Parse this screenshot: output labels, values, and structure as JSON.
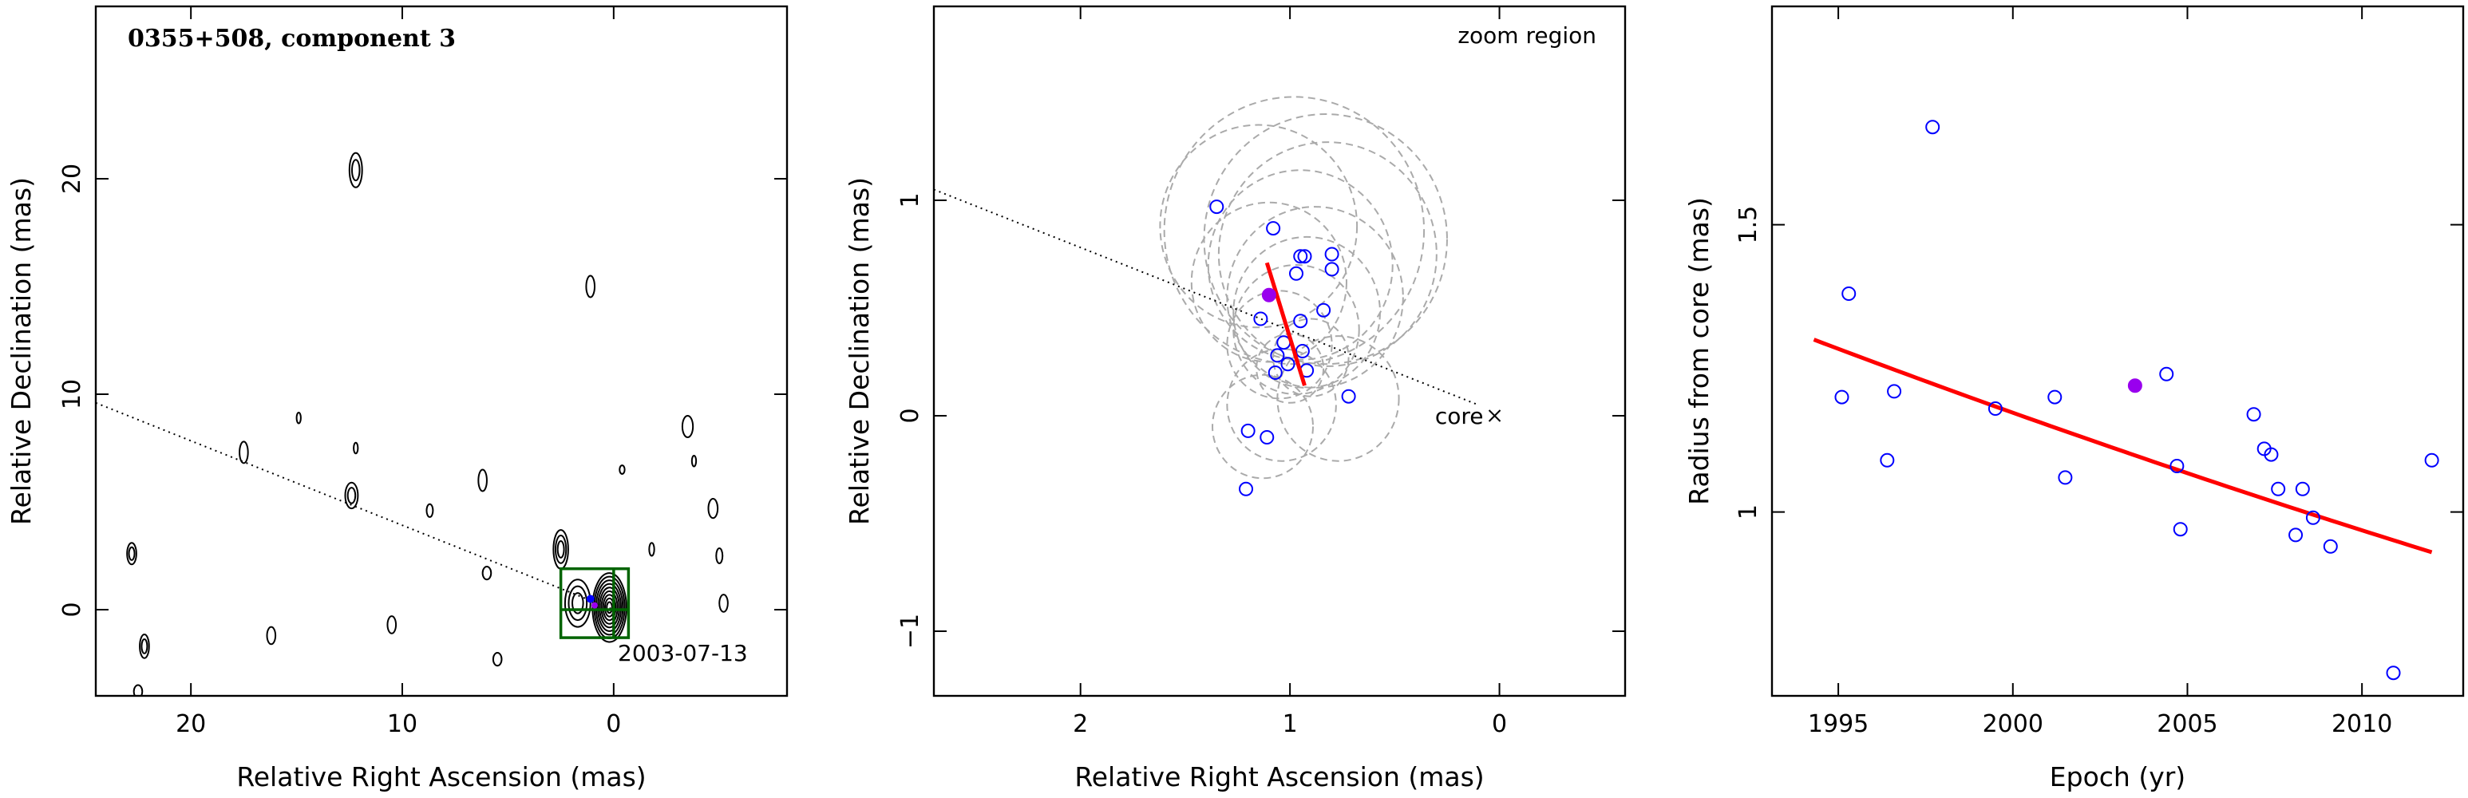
{
  "colors": {
    "observations": "#0000ff",
    "highlighted_epoch": "#9900ee",
    "fit": "#ff0000",
    "zoom_box": "#006400",
    "ring": "#aaaaaa",
    "contours": "#000000"
  },
  "chart_data": [
    {
      "type": "contour",
      "title": "0355+508, component 3",
      "xlabel": "Relative Right Ascension (mas)",
      "ylabel": "Relative Declination (mas)",
      "xlim": [
        24.5,
        -8.2
      ],
      "ylim": [
        -4,
        28
      ],
      "xticks": [
        20,
        10,
        0
      ],
      "yticks": [
        0,
        10,
        20
      ],
      "annotation": "2003-07-13",
      "core": {
        "ra": 0,
        "dec": 0
      },
      "position_angle_line": {
        "from": [
          24.5,
          9.6
        ],
        "to": [
          0,
          0
        ]
      },
      "zoom_box": {
        "ra_min": -0.7,
        "ra_max": 2.5,
        "dec_min": -1.3,
        "dec_max": 1.9
      },
      "contour_features": [
        {
          "ra": 0.2,
          "dec": 0.1,
          "rx": 0.8,
          "ry": 1.6,
          "levels": 9
        },
        {
          "ra": 1.7,
          "dec": 0.3,
          "rx": 0.6,
          "ry": 1.1,
          "levels": 3
        },
        {
          "ra": 2.5,
          "dec": 2.8,
          "rx": 0.35,
          "ry": 0.9,
          "levels": 3
        },
        {
          "ra": 12.2,
          "dec": 20.4,
          "rx": 0.3,
          "ry": 0.8,
          "levels": 2
        },
        {
          "ra": 12.4,
          "dec": 5.3,
          "rx": 0.3,
          "ry": 0.6,
          "levels": 2
        },
        {
          "ra": 1.1,
          "dec": 15.0,
          "rx": 0.2,
          "ry": 0.5,
          "levels": 1
        },
        {
          "ra": 17.5,
          "dec": 7.3,
          "rx": 0.2,
          "ry": 0.5,
          "levels": 1
        },
        {
          "ra": 6.2,
          "dec": 6.0,
          "rx": 0.2,
          "ry": 0.5,
          "levels": 1
        },
        {
          "ra": 22.8,
          "dec": 2.6,
          "rx": 0.22,
          "ry": 0.5,
          "levels": 2
        },
        {
          "ra": 22.2,
          "dec": -1.7,
          "rx": 0.22,
          "ry": 0.55,
          "levels": 2
        },
        {
          "ra": 16.2,
          "dec": -1.2,
          "rx": 0.2,
          "ry": 0.4,
          "levels": 1
        },
        {
          "ra": 10.5,
          "dec": -0.7,
          "rx": 0.2,
          "ry": 0.4,
          "levels": 1
        },
        {
          "ra": 5.5,
          "dec": -2.3,
          "rx": 0.2,
          "ry": 0.3,
          "levels": 1
        },
        {
          "ra": 6.0,
          "dec": 1.7,
          "rx": 0.2,
          "ry": 0.3,
          "levels": 1
        },
        {
          "ra": 8.7,
          "dec": 4.6,
          "rx": 0.15,
          "ry": 0.3,
          "levels": 1
        },
        {
          "ra": -3.5,
          "dec": 8.5,
          "rx": 0.25,
          "ry": 0.5,
          "levels": 1
        },
        {
          "ra": -4.7,
          "dec": 4.7,
          "rx": 0.22,
          "ry": 0.45,
          "levels": 1
        },
        {
          "ra": -5.2,
          "dec": 0.3,
          "rx": 0.2,
          "ry": 0.4,
          "levels": 1
        },
        {
          "ra": -5.0,
          "dec": 2.5,
          "rx": 0.15,
          "ry": 0.35,
          "levels": 1
        },
        {
          "ra": -1.8,
          "dec": 2.8,
          "rx": 0.12,
          "ry": 0.3,
          "levels": 1
        },
        {
          "ra": -3.8,
          "dec": 6.9,
          "rx": 0.1,
          "ry": 0.25,
          "levels": 1
        },
        {
          "ra": -0.4,
          "dec": 6.5,
          "rx": 0.12,
          "ry": 0.2,
          "levels": 1
        },
        {
          "ra": 12.2,
          "dec": 7.5,
          "rx": 0.1,
          "ry": 0.25,
          "levels": 1
        },
        {
          "ra": 14.9,
          "dec": 8.9,
          "rx": 0.1,
          "ry": 0.25,
          "levels": 1
        },
        {
          "ra": 22.5,
          "dec": -3.8,
          "rx": 0.2,
          "ry": 0.3,
          "levels": 1
        }
      ]
    },
    {
      "type": "scatter",
      "title": "zoom region",
      "xlabel": "Relative Right Ascension (mas)",
      "ylabel": "Relative Declination (mas)",
      "xlim": [
        2.7,
        -0.6
      ],
      "ylim": [
        -1.3,
        1.9
      ],
      "xticks": [
        2,
        1,
        0
      ],
      "yticks": [
        -1,
        0,
        1
      ],
      "core_label": "core",
      "core": {
        "ra": 0,
        "dec": 0
      },
      "position_angle_line": {
        "from": [
          2.7,
          1.05
        ],
        "to": [
          0.1,
          0.05
        ]
      },
      "components": [
        {
          "ra": 1.35,
          "dec": 0.97
        },
        {
          "ra": 1.08,
          "dec": 0.87
        },
        {
          "ra": 0.95,
          "dec": 0.74
        },
        {
          "ra": 0.93,
          "dec": 0.74
        },
        {
          "ra": 0.8,
          "dec": 0.75
        },
        {
          "ra": 0.97,
          "dec": 0.66
        },
        {
          "ra": 0.8,
          "dec": 0.68
        },
        {
          "ra": 0.84,
          "dec": 0.49
        },
        {
          "ra": 1.14,
          "dec": 0.45
        },
        {
          "ra": 0.95,
          "dec": 0.44
        },
        {
          "ra": 1.03,
          "dec": 0.34
        },
        {
          "ra": 1.06,
          "dec": 0.28
        },
        {
          "ra": 0.94,
          "dec": 0.3
        },
        {
          "ra": 1.01,
          "dec": 0.24
        },
        {
          "ra": 0.92,
          "dec": 0.21
        },
        {
          "ra": 1.07,
          "dec": 0.2
        },
        {
          "ra": 0.72,
          "dec": 0.09
        },
        {
          "ra": 1.2,
          "dec": -0.07
        },
        {
          "ra": 1.11,
          "dec": -0.1
        },
        {
          "ra": 1.21,
          "dec": -0.34
        }
      ],
      "highlighted": {
        "ra": 1.1,
        "dec": 0.56
      },
      "component_sizes_mas": [
        {
          "ra": 1.15,
          "dec": 0.88,
          "r": 0.47
        },
        {
          "ra": 0.98,
          "dec": 0.86,
          "r": 0.62
        },
        {
          "ra": 0.83,
          "dec": 0.82,
          "r": 0.58
        },
        {
          "ra": 0.82,
          "dec": 0.75,
          "r": 0.52
        },
        {
          "ra": 0.95,
          "dec": 0.7,
          "r": 0.44
        },
        {
          "ra": 1.1,
          "dec": 0.62,
          "r": 0.37
        },
        {
          "ra": 0.88,
          "dec": 0.55,
          "r": 0.42
        },
        {
          "ra": 0.97,
          "dec": 0.4,
          "r": 0.3
        },
        {
          "ra": 0.92,
          "dec": 0.48,
          "r": 0.35
        },
        {
          "ra": 1.05,
          "dec": 0.33,
          "r": 0.25
        },
        {
          "ra": 0.77,
          "dec": 0.08,
          "r": 0.29
        },
        {
          "ra": 1.04,
          "dec": 0.05,
          "r": 0.26
        },
        {
          "ra": 1.13,
          "dec": -0.05,
          "r": 0.24
        },
        {
          "ra": 0.9,
          "dec": 0.27,
          "r": 0.18
        },
        {
          "ra": 1.0,
          "dec": 0.22,
          "r": 0.16
        }
      ],
      "trajectory": {
        "from": [
          1.11,
          0.71
        ],
        "to": [
          0.93,
          0.14
        ]
      }
    },
    {
      "type": "scatter",
      "xlabel": "Epoch (yr)",
      "ylabel": "Radius from core (mas)",
      "xlim": [
        1993.1,
        2012.9
      ],
      "ylim": [
        0.68,
        1.88
      ],
      "xticks": [
        1995,
        2000,
        2005,
        2010
      ],
      "yticks": [
        1,
        1.5
      ],
      "points": [
        {
          "x": 1995.1,
          "y": 1.2
        },
        {
          "x": 1995.3,
          "y": 1.38
        },
        {
          "x": 1996.4,
          "y": 1.09
        },
        {
          "x": 1996.6,
          "y": 1.21
        },
        {
          "x": 1997.7,
          "y": 1.67
        },
        {
          "x": 1999.5,
          "y": 1.18
        },
        {
          "x": 2001.2,
          "y": 1.2
        },
        {
          "x": 2001.5,
          "y": 1.06
        },
        {
          "x": 2004.4,
          "y": 1.24
        },
        {
          "x": 2004.7,
          "y": 1.08
        },
        {
          "x": 2004.8,
          "y": 0.97
        },
        {
          "x": 2006.9,
          "y": 1.17
        },
        {
          "x": 2007.2,
          "y": 1.11
        },
        {
          "x": 2007.4,
          "y": 1.1
        },
        {
          "x": 2007.6,
          "y": 1.04
        },
        {
          "x": 2008.1,
          "y": 0.96
        },
        {
          "x": 2008.3,
          "y": 1.04
        },
        {
          "x": 2008.6,
          "y": 0.99
        },
        {
          "x": 2009.1,
          "y": 0.94
        },
        {
          "x": 2010.9,
          "y": 0.72
        },
        {
          "x": 2012.0,
          "y": 1.09
        }
      ],
      "highlighted": {
        "x": 2003.5,
        "y": 1.22
      },
      "fit": {
        "x": [
          1994.3,
          1998,
          2002,
          2006,
          2012
        ],
        "y": [
          1.3,
          1.22,
          1.13,
          1.06,
          0.93
        ]
      }
    }
  ]
}
